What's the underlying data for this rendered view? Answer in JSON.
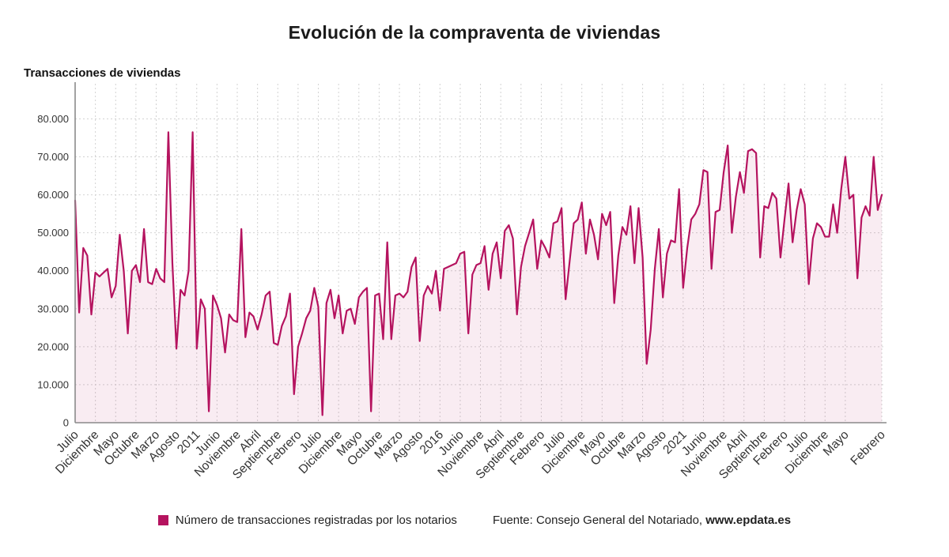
{
  "page": {
    "title": "Evolución de la compraventa de viviendas",
    "axis_title": "Transacciones de viviendas",
    "legend": {
      "series_label": "Número de transacciones registradas por los notarios"
    },
    "source": {
      "prefix": "Fuente: Consejo General del Notariado, ",
      "brand": "www.epdata.es"
    }
  },
  "colors": {
    "line": "#b5135f",
    "area_fill": "rgba(181,19,95,0.08)",
    "grid": "#d2d2d2",
    "axis": "#8a8a8a",
    "tick_text": "#333333",
    "title_text": "#1a1a1a"
  },
  "chart_data": {
    "type": "line",
    "title": "Evolución de la compraventa de viviendas",
    "xlabel": "",
    "ylabel": "Transacciones de viviendas",
    "ylim": [
      0,
      88000
    ],
    "grid": true,
    "legend_position": "bottom",
    "x_period": "monthly",
    "x_start": "Julio 2008",
    "x_end": "Febrero 2025",
    "y_ticks": [
      0,
      10000,
      20000,
      30000,
      40000,
      50000,
      60000,
      70000,
      80000
    ],
    "y_tick_labels": [
      "0",
      "10.000",
      "20.000",
      "30.000",
      "40.000",
      "50.000",
      "60.000",
      "70.000",
      "80.000"
    ],
    "x_tick_positions": [
      0,
      5,
      10,
      15,
      20,
      25,
      30,
      35,
      40,
      45,
      50,
      55,
      60,
      65,
      70,
      75,
      80,
      85,
      90,
      95,
      100,
      105,
      110,
      115,
      120,
      125,
      130,
      135,
      140,
      145,
      150,
      155,
      160,
      165,
      170,
      175,
      180,
      185,
      190,
      199
    ],
    "x_tick_labels": [
      "Julio",
      "Diciembre",
      "Mayo",
      "Octubre",
      "Marzo",
      "Agosto",
      "2011",
      "Junio",
      "Noviembre",
      "Abril",
      "Septiembre",
      "Febrero",
      "Julio",
      "Diciembre",
      "Mayo",
      "Octubre",
      "Marzo",
      "Agosto",
      "2016",
      "Junio",
      "Noviembre",
      "Abril",
      "Septiembre",
      "Febrero",
      "Julio",
      "Diciembre",
      "Mayo",
      "Octubre",
      "Marzo",
      "Agosto",
      "2021",
      "Junio",
      "Noviembre",
      "Abril",
      "Septiembre",
      "Febrero",
      "Julio",
      "Diciembre",
      "Mayo",
      "Febrero"
    ],
    "series": [
      {
        "name": "Número de transacciones registradas por los notarios",
        "values": [
          58500,
          29000,
          46000,
          44000,
          28500,
          39500,
          38500,
          39500,
          40500,
          33000,
          36000,
          49500,
          40000,
          23500,
          40000,
          41500,
          37000,
          51000,
          37000,
          36500,
          40500,
          38000,
          37000,
          76500,
          42000,
          19500,
          35000,
          33500,
          40000,
          76500,
          19500,
          32500,
          30000,
          3000,
          33500,
          31000,
          27500,
          18500,
          28500,
          27000,
          26500,
          51000,
          22500,
          29000,
          28000,
          24500,
          28500,
          33500,
          34500,
          21000,
          20500,
          25500,
          28000,
          34000,
          7500,
          20000,
          23500,
          27500,
          29500,
          35500,
          30500,
          2000,
          31500,
          35000,
          27500,
          33500,
          23500,
          29500,
          30000,
          26000,
          33000,
          34500,
          35500,
          3000,
          33500,
          34000,
          22000,
          47500,
          22000,
          33500,
          34000,
          33000,
          34500,
          41000,
          43500,
          21500,
          33500,
          36000,
          34000,
          40000,
          29500,
          40500,
          41000,
          41500,
          42000,
          44500,
          45000,
          23500,
          39000,
          41500,
          42000,
          46500,
          35000,
          44500,
          47500,
          38000,
          50500,
          52000,
          48500,
          28500,
          41000,
          46500,
          50000,
          53500,
          40500,
          48000,
          46000,
          43500,
          52500,
          53000,
          56500,
          32500,
          42500,
          52500,
          53500,
          58000,
          44500,
          53500,
          49500,
          43000,
          55000,
          52000,
          55500,
          31500,
          44000,
          51500,
          49500,
          57000,
          42000,
          56500,
          43500,
          15500,
          24500,
          40500,
          51000,
          33000,
          44500,
          48000,
          47500,
          61500,
          35500,
          46000,
          53500,
          55000,
          57500,
          66500,
          66000,
          40500,
          55500,
          56000,
          66000,
          73000,
          50000,
          59500,
          66000,
          60500,
          71500,
          72000,
          71000,
          43500,
          57000,
          56500,
          60500,
          59000,
          43500,
          53500,
          63000,
          47500,
          56000,
          61500,
          57500,
          36500,
          48500,
          52500,
          51500,
          49000,
          49000,
          57500,
          50000,
          61500,
          70000,
          59000,
          60000,
          38000,
          54000,
          57000,
          54500,
          70000,
          56000,
          60000
        ]
      }
    ]
  }
}
